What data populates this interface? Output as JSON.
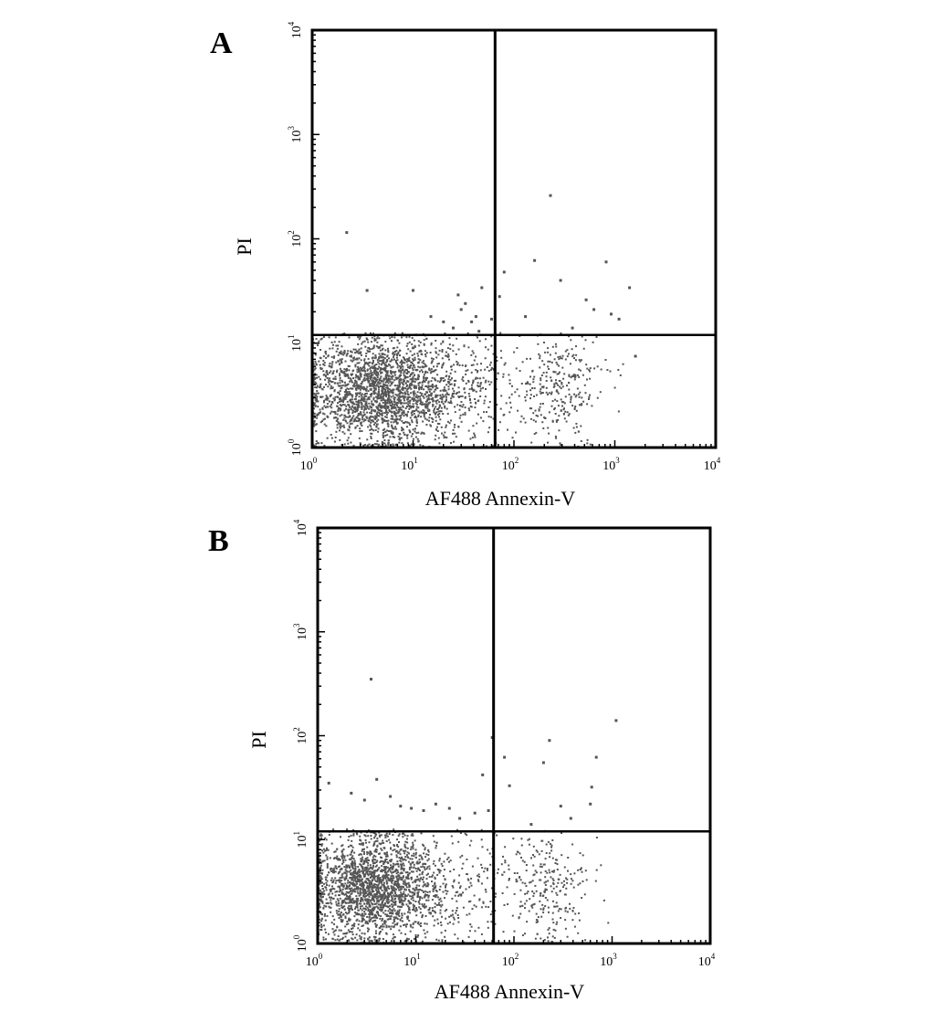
{
  "chart_data": [
    {
      "type": "scatter",
      "panel_label": "A",
      "title": "",
      "xlabel": "AF488 Annexin-V",
      "ylabel": "PI",
      "xscale": "log",
      "yscale": "log",
      "xlim": [
        1,
        10000
      ],
      "ylim": [
        1,
        10000
      ],
      "x_ticks": [
        {
          "value": 1,
          "base": "10",
          "exp": "0"
        },
        {
          "value": 10,
          "base": "10",
          "exp": "1"
        },
        {
          "value": 100,
          "base": "10",
          "exp": "2"
        },
        {
          "value": 1000,
          "base": "10",
          "exp": "3"
        },
        {
          "value": 10000,
          "base": "10",
          "exp": "4"
        }
      ],
      "y_ticks": [
        {
          "value": 1,
          "base": "10",
          "exp": "0"
        },
        {
          "value": 10,
          "base": "10",
          "exp": "1"
        },
        {
          "value": 100,
          "base": "10",
          "exp": "2"
        },
        {
          "value": 1000,
          "base": "10",
          "exp": "3"
        },
        {
          "value": 10000,
          "base": "10",
          "exp": "4"
        }
      ],
      "quadrant_gates": {
        "x": 65,
        "y": 12
      },
      "grid": false,
      "legend": "none",
      "point_color": "#555555",
      "cell_populations": [
        {
          "x_center": 5,
          "y_center": 3.5,
          "x_spread": 0.38,
          "y_spread": 0.26,
          "count": 2300
        },
        {
          "x_center": 35,
          "y_center": 3.8,
          "x_spread": 0.25,
          "y_spread": 0.25,
          "count": 180
        },
        {
          "x_center": 280,
          "y_center": 3.8,
          "x_spread": 0.22,
          "y_spread": 0.25,
          "count": 300
        }
      ],
      "points": [
        [
          2.2,
          115
        ],
        [
          3.5,
          32
        ],
        [
          10,
          32
        ],
        [
          48,
          34
        ],
        [
          28,
          29
        ],
        [
          33,
          24
        ],
        [
          15,
          18
        ],
        [
          20,
          16
        ],
        [
          25,
          14
        ],
        [
          38,
          16
        ],
        [
          42,
          18
        ],
        [
          30,
          21
        ],
        [
          45,
          13
        ],
        [
          230,
          260
        ],
        [
          160,
          62
        ],
        [
          820,
          60
        ],
        [
          290,
          40
        ],
        [
          520,
          26
        ],
        [
          80,
          48
        ],
        [
          1400,
          34
        ],
        [
          920,
          19
        ],
        [
          620,
          21
        ],
        [
          380,
          14
        ],
        [
          130,
          18
        ],
        [
          1100,
          17
        ],
        [
          72,
          28
        ],
        [
          60,
          17
        ],
        [
          1600,
          7.5
        ]
      ]
    },
    {
      "type": "scatter",
      "panel_label": "B",
      "title": "",
      "xlabel": "AF488 Annexin-V",
      "ylabel": "PI",
      "xscale": "log",
      "yscale": "log",
      "xlim": [
        1,
        10000
      ],
      "ylim": [
        1,
        10000
      ],
      "x_ticks": [
        {
          "value": 1,
          "base": "10",
          "exp": "0"
        },
        {
          "value": 10,
          "base": "10",
          "exp": "1"
        },
        {
          "value": 100,
          "base": "10",
          "exp": "2"
        },
        {
          "value": 1000,
          "base": "10",
          "exp": "3"
        },
        {
          "value": 10000,
          "base": "10",
          "exp": "4"
        }
      ],
      "y_ticks": [
        {
          "value": 1,
          "base": "10",
          "exp": "0"
        },
        {
          "value": 10,
          "base": "10",
          "exp": "1"
        },
        {
          "value": 100,
          "base": "10",
          "exp": "2"
        },
        {
          "value": 1000,
          "base": "10",
          "exp": "3"
        },
        {
          "value": 10000,
          "base": "10",
          "exp": "4"
        }
      ],
      "quadrant_gates": {
        "x": 62,
        "y": 12
      },
      "grid": false,
      "legend": "none",
      "point_color": "#555555",
      "cell_populations": [
        {
          "x_center": 3.8,
          "y_center": 3.5,
          "x_spread": 0.34,
          "y_spread": 0.26,
          "count": 2100
        },
        {
          "x_center": 28,
          "y_center": 3.6,
          "x_spread": 0.28,
          "y_spread": 0.26,
          "count": 200
        },
        {
          "x_center": 230,
          "y_center": 3.6,
          "x_spread": 0.22,
          "y_spread": 0.25,
          "count": 250
        }
      ],
      "points": [
        [
          3.5,
          350
        ],
        [
          1.3,
          35
        ],
        [
          2.2,
          28
        ],
        [
          3,
          24
        ],
        [
          4,
          38
        ],
        [
          5.5,
          26
        ],
        [
          7,
          21
        ],
        [
          9,
          20
        ],
        [
          12,
          19
        ],
        [
          16,
          22
        ],
        [
          22,
          20
        ],
        [
          28,
          16
        ],
        [
          40,
          18
        ],
        [
          48,
          42
        ],
        [
          55,
          19
        ],
        [
          60,
          96
        ],
        [
          230,
          90
        ],
        [
          80,
          62
        ],
        [
          200,
          55
        ],
        [
          690,
          62
        ],
        [
          1100,
          140
        ],
        [
          620,
          32
        ],
        [
          300,
          21
        ],
        [
          600,
          22
        ],
        [
          90,
          33
        ],
        [
          150,
          14
        ],
        [
          380,
          16
        ]
      ]
    }
  ]
}
